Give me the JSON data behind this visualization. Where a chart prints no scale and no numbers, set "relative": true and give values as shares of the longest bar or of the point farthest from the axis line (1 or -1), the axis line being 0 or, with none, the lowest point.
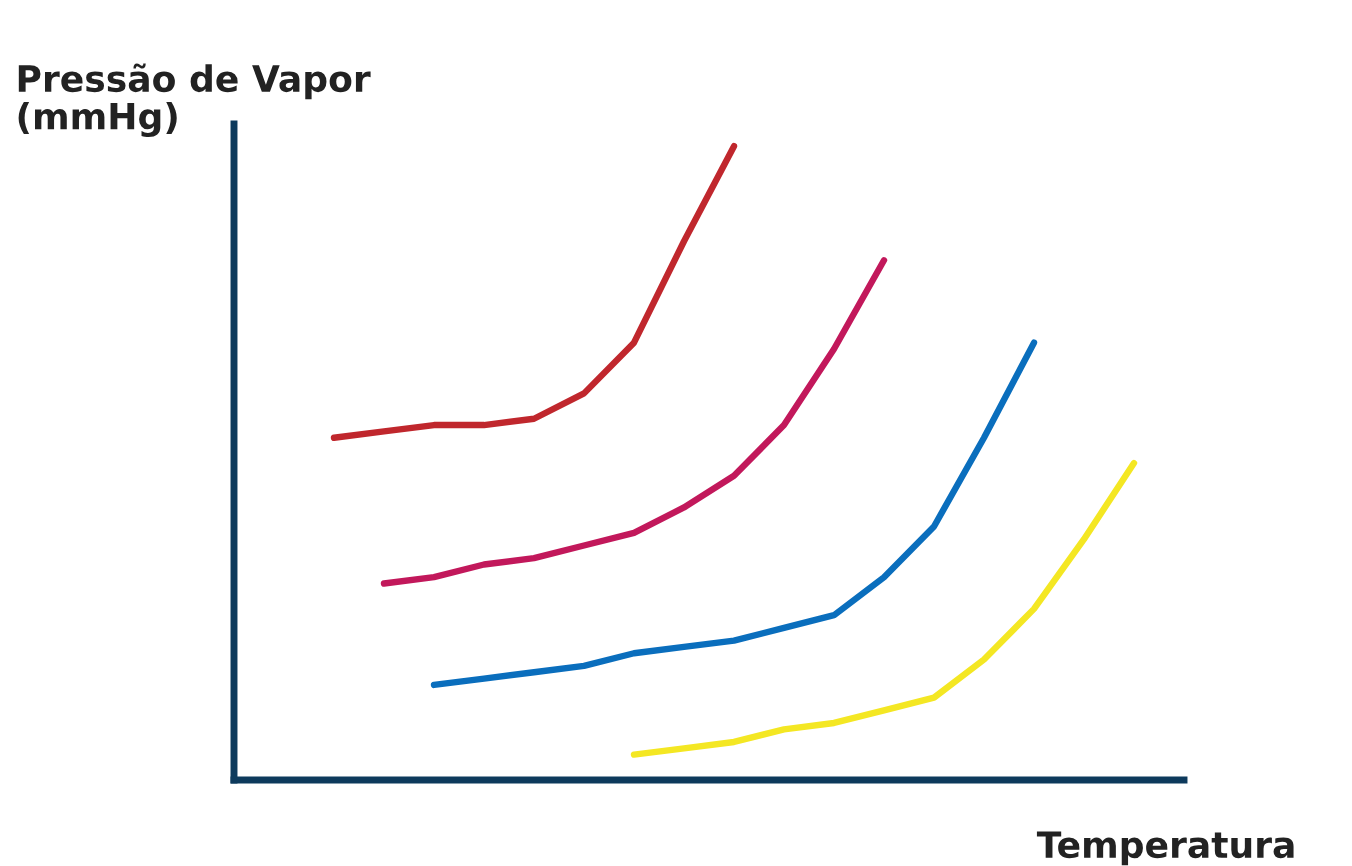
{
  "chart_data": {
    "type": "line",
    "relative": true,
    "ylabel": "Pressão de Vapor\n(mmHg)",
    "xlabel": "Temperatura",
    "tick_labels": false,
    "marker": "none",
    "line_style": "solid",
    "categories": [
      null,
      null,
      null,
      null,
      null,
      null,
      null,
      null,
      null,
      null,
      null,
      null,
      null,
      null,
      null,
      null,
      null,
      null,
      null,
      null
    ],
    "series": [
      {
        "color": "#c0272d",
        "values": [
          null,
          null,
          0.54,
          0.55,
          0.56,
          0.56,
          0.57,
          0.61,
          0.69,
          0.85,
          1,
          null,
          null,
          null,
          null,
          null,
          null,
          null,
          null,
          null
        ]
      },
      {
        "color": "#c2185b",
        "values": [
          null,
          null,
          null,
          0.31,
          0.32,
          0.34,
          0.35,
          0.37,
          0.39,
          0.43,
          0.48,
          0.56,
          0.68,
          0.82,
          null,
          null,
          null,
          null,
          null,
          null
        ]
      },
      {
        "color": "#0a6ebd",
        "values": [
          null,
          null,
          null,
          null,
          0.15,
          0.16,
          0.17,
          0.18,
          0.2,
          0.21,
          0.22,
          0.24,
          0.26,
          0.32,
          0.4,
          0.54,
          0.69,
          null,
          null,
          null
        ]
      },
      {
        "color": "#f4e723",
        "values": [
          null,
          null,
          null,
          null,
          null,
          null,
          null,
          null,
          0.04,
          0.05,
          0.06,
          0.08,
          0.09,
          0.11,
          0.13,
          0.19,
          0.27,
          0.38,
          0.5,
          null
        ]
      }
    ]
  }
}
